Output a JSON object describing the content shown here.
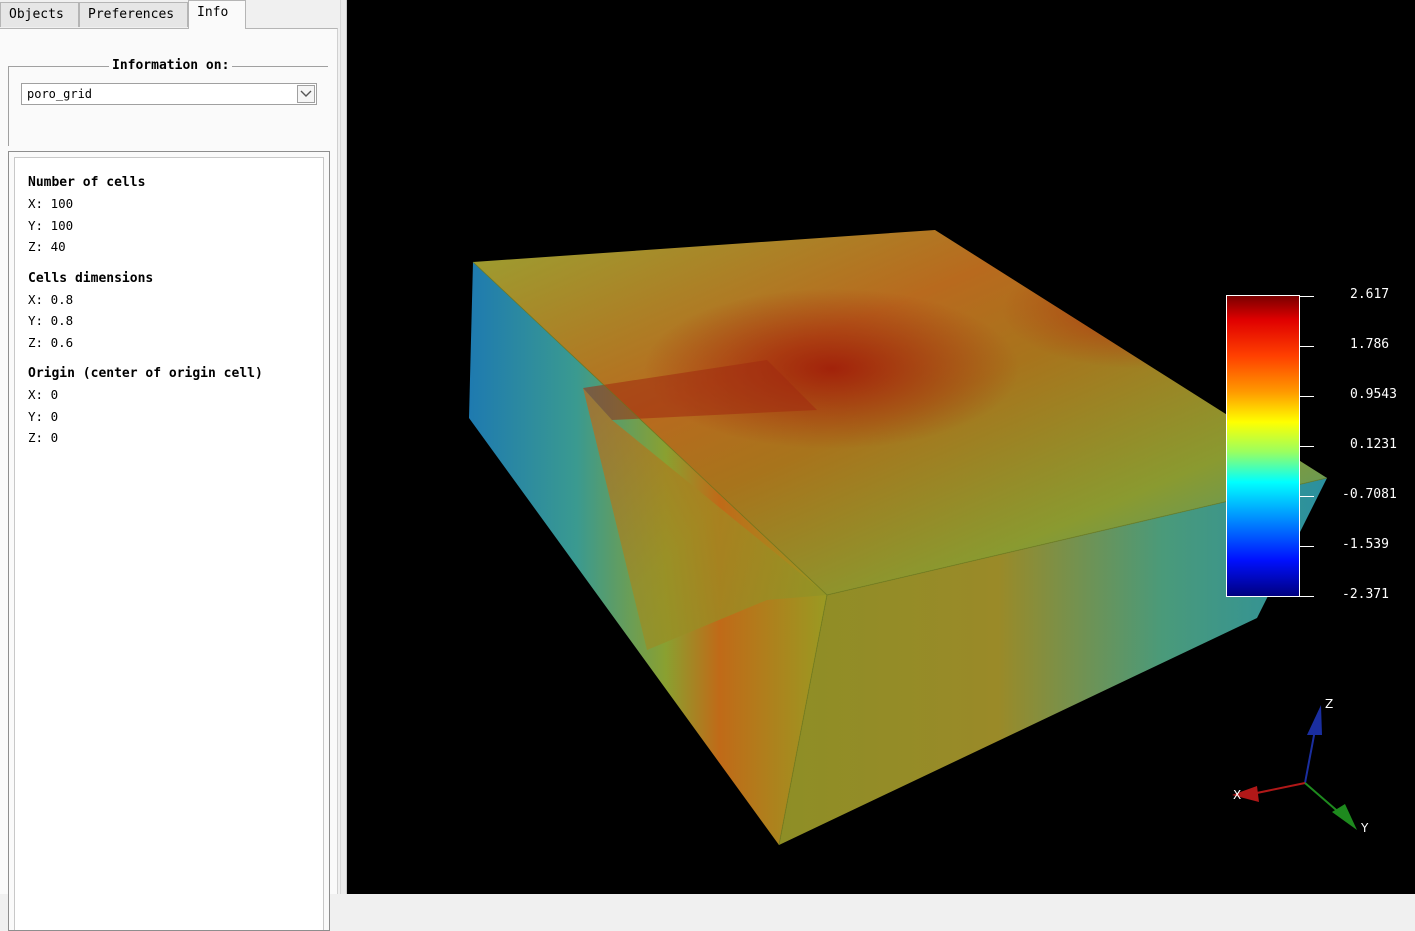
{
  "tabs": [
    {
      "label": "Objects"
    },
    {
      "label": "Preferences"
    },
    {
      "label": "Info"
    }
  ],
  "info_group": {
    "title": "Information on:",
    "selected_object": "poro_grid"
  },
  "info": {
    "num_cells_title": "Number of cells",
    "num_cells": {
      "x": "X: 100",
      "y": "Y: 100",
      "z": "Z: 40"
    },
    "cell_dims_title": "Cells dimensions",
    "cell_dims": {
      "x": "X: 0.8",
      "y": "Y: 0.8",
      "z": "Z: 0.6"
    },
    "origin_title": "Origin (center of origin cell)",
    "origin": {
      "x": "X: 0",
      "y": "Y: 0",
      "z": "Z: 0"
    }
  },
  "colorbar": {
    "labels": [
      "2.617",
      "1.786",
      "0.9543",
      "0.1231",
      "-0.7081",
      "-1.539",
      "-2.371"
    ],
    "max": 2.617,
    "min": -2.371
  },
  "axes": {
    "x": "X",
    "y": "Y",
    "z": "Z"
  },
  "colors": {
    "background": "#000000",
    "axis_x": "#b01818",
    "axis_y": "#1e8a1e",
    "axis_z": "#1a2ea0"
  }
}
